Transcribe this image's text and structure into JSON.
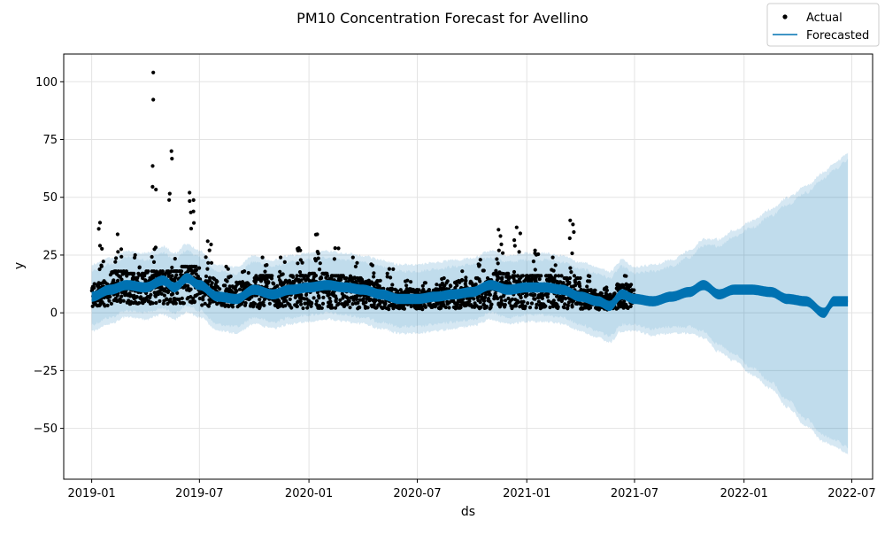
{
  "chart_data": {
    "type": "scatter",
    "title": "PM10 Concentration Forecast for Avellino",
    "xlabel": "ds",
    "ylabel": "y",
    "x_ticks": [
      "2019-01",
      "2019-07",
      "2020-01",
      "2020-07",
      "2021-01",
      "2021-07",
      "2022-01",
      "2022-07"
    ],
    "y_ticks": [
      -50,
      -25,
      0,
      25,
      50,
      75,
      100
    ],
    "xlim": [
      "2018-11-15",
      "2022-08-05"
    ],
    "ylim": [
      -72,
      112
    ],
    "grid": true,
    "legend_position": "top-right",
    "series": [
      {
        "name": "Actual",
        "kind": "points",
        "color": "#000000",
        "summary_by_period": [
          {
            "period": "2019-01",
            "min": 2,
            "typical": 8,
            "max": 39
          },
          {
            "period": "2019-02",
            "min": 3,
            "typical": 12,
            "max": 34
          },
          {
            "period": "2019-03",
            "min": 3,
            "typical": 11,
            "max": 25
          },
          {
            "period": "2019-04",
            "min": 3,
            "typical": 12,
            "max": 104
          },
          {
            "period": "2019-05",
            "min": 3,
            "typical": 12,
            "max": 70
          },
          {
            "period": "2019-06",
            "min": 3,
            "typical": 14,
            "max": 52
          },
          {
            "period": "2019-07",
            "min": 2,
            "typical": 9,
            "max": 31
          },
          {
            "period": "2019-08",
            "min": 2,
            "typical": 7,
            "max": 20
          },
          {
            "period": "2019-09",
            "min": 2,
            "typical": 8,
            "max": 18
          },
          {
            "period": "2019-10",
            "min": 1,
            "typical": 10,
            "max": 24
          },
          {
            "period": "2019-11",
            "min": 1,
            "typical": 8,
            "max": 24
          },
          {
            "period": "2019-12",
            "min": 1,
            "typical": 10,
            "max": 28
          },
          {
            "period": "2020-01",
            "min": 1,
            "typical": 11,
            "max": 34
          },
          {
            "period": "2020-02",
            "min": 1,
            "typical": 10,
            "max": 28
          },
          {
            "period": "2020-03",
            "min": 1,
            "typical": 9,
            "max": 24
          },
          {
            "period": "2020-04",
            "min": 1,
            "typical": 8,
            "max": 21
          },
          {
            "period": "2020-05",
            "min": 1,
            "typical": 6,
            "max": 19
          },
          {
            "period": "2020-06",
            "min": 1,
            "typical": 6,
            "max": 14
          },
          {
            "period": "2020-07",
            "min": 1,
            "typical": 6,
            "max": 13
          },
          {
            "period": "2020-08",
            "min": 1,
            "typical": 7,
            "max": 15
          },
          {
            "period": "2020-09",
            "min": 1,
            "typical": 8,
            "max": 18
          },
          {
            "period": "2020-10",
            "min": 1,
            "typical": 9,
            "max": 23
          },
          {
            "period": "2020-11",
            "min": 1,
            "typical": 11,
            "max": 36
          },
          {
            "period": "2020-12",
            "min": 1,
            "typical": 10,
            "max": 37
          },
          {
            "period": "2021-01",
            "min": 1,
            "typical": 10,
            "max": 27
          },
          {
            "period": "2021-02",
            "min": 1,
            "typical": 10,
            "max": 24
          },
          {
            "period": "2021-03",
            "min": 1,
            "typical": 9,
            "max": 40
          },
          {
            "period": "2021-04",
            "min": 1,
            "typical": 6,
            "max": 16
          },
          {
            "period": "2021-05",
            "min": 1,
            "typical": 5,
            "max": 11
          },
          {
            "period": "2021-06",
            "min": 1,
            "typical": 7,
            "max": 16
          }
        ]
      },
      {
        "name": "Forecasted",
        "kind": "line",
        "color": "#0072B2",
        "interval_color": "#0072B2",
        "points": [
          {
            "x": "2019-01-01",
            "y": 7,
            "lower": -5,
            "upper": 18
          },
          {
            "x": "2019-02-01",
            "y": 10,
            "lower": -2,
            "upper": 21
          },
          {
            "x": "2019-03-01",
            "y": 12,
            "lower": 1,
            "upper": 24
          },
          {
            "x": "2019-04-01",
            "y": 11,
            "lower": 0,
            "upper": 23
          },
          {
            "x": "2019-05-01",
            "y": 14,
            "lower": 2,
            "upper": 26
          },
          {
            "x": "2019-05-20",
            "y": 11,
            "lower": 0,
            "upper": 23
          },
          {
            "x": "2019-06-10",
            "y": 15,
            "lower": 3,
            "upper": 27
          },
          {
            "x": "2019-07-01",
            "y": 12,
            "lower": 1,
            "upper": 24
          },
          {
            "x": "2019-08-01",
            "y": 7,
            "lower": -5,
            "upper": 18
          },
          {
            "x": "2019-09-01",
            "y": 6,
            "lower": -6,
            "upper": 17
          },
          {
            "x": "2019-10-01",
            "y": 10,
            "lower": -2,
            "upper": 22
          },
          {
            "x": "2019-11-01",
            "y": 8,
            "lower": -4,
            "upper": 20
          },
          {
            "x": "2019-12-01",
            "y": 10,
            "lower": -2,
            "upper": 22
          },
          {
            "x": "2020-01-01",
            "y": 11,
            "lower": -1,
            "upper": 23
          },
          {
            "x": "2020-02-01",
            "y": 12,
            "lower": 0,
            "upper": 24
          },
          {
            "x": "2020-03-01",
            "y": 11,
            "lower": -1,
            "upper": 23
          },
          {
            "x": "2020-04-01",
            "y": 10,
            "lower": -2,
            "upper": 22
          },
          {
            "x": "2020-05-01",
            "y": 8,
            "lower": -4,
            "upper": 20
          },
          {
            "x": "2020-06-01",
            "y": 6,
            "lower": -6,
            "upper": 18
          },
          {
            "x": "2020-07-01",
            "y": 6,
            "lower": -6,
            "upper": 18
          },
          {
            "x": "2020-08-01",
            "y": 7,
            "lower": -5,
            "upper": 19
          },
          {
            "x": "2020-09-01",
            "y": 8,
            "lower": -4,
            "upper": 20
          },
          {
            "x": "2020-10-01",
            "y": 9,
            "lower": -3,
            "upper": 21
          },
          {
            "x": "2020-11-01",
            "y": 12,
            "lower": 0,
            "upper": 24
          },
          {
            "x": "2020-12-01",
            "y": 10,
            "lower": -2,
            "upper": 22
          },
          {
            "x": "2021-01-01",
            "y": 11,
            "lower": -1,
            "upper": 23
          },
          {
            "x": "2021-02-01",
            "y": 11,
            "lower": -1,
            "upper": 23
          },
          {
            "x": "2021-03-01",
            "y": 10,
            "lower": -2,
            "upper": 22
          },
          {
            "x": "2021-04-01",
            "y": 7,
            "lower": -5,
            "upper": 19
          },
          {
            "x": "2021-05-01",
            "y": 5,
            "lower": -8,
            "upper": 17
          },
          {
            "x": "2021-05-20",
            "y": 3,
            "lower": -10,
            "upper": 15
          },
          {
            "x": "2021-06-10",
            "y": 8,
            "lower": -5,
            "upper": 20
          },
          {
            "x": "2021-07-01",
            "y": 6,
            "lower": -5,
            "upper": 17
          },
          {
            "x": "2021-08-01",
            "y": 5,
            "lower": -7,
            "upper": 18
          },
          {
            "x": "2021-09-01",
            "y": 7,
            "lower": -6,
            "upper": 20
          },
          {
            "x": "2021-10-01",
            "y": 9,
            "lower": -6,
            "upper": 24
          },
          {
            "x": "2021-10-25",
            "y": 12,
            "lower": -8,
            "upper": 29
          },
          {
            "x": "2021-11-20",
            "y": 8,
            "lower": -14,
            "upper": 29
          },
          {
            "x": "2021-12-15",
            "y": 10,
            "lower": -18,
            "upper": 33
          },
          {
            "x": "2022-01-15",
            "y": 10,
            "lower": -24,
            "upper": 37
          },
          {
            "x": "2022-02-15",
            "y": 9,
            "lower": -30,
            "upper": 42
          },
          {
            "x": "2022-03-15",
            "y": 6,
            "lower": -38,
            "upper": 47
          },
          {
            "x": "2022-04-15",
            "y": 5,
            "lower": -46,
            "upper": 52
          },
          {
            "x": "2022-05-15",
            "y": 0,
            "lower": -53,
            "upper": 58
          },
          {
            "x": "2022-06-01",
            "y": 5,
            "lower": -55,
            "upper": 62
          },
          {
            "x": "2022-06-25",
            "y": 5,
            "lower": -58,
            "upper": 66
          }
        ]
      }
    ]
  }
}
